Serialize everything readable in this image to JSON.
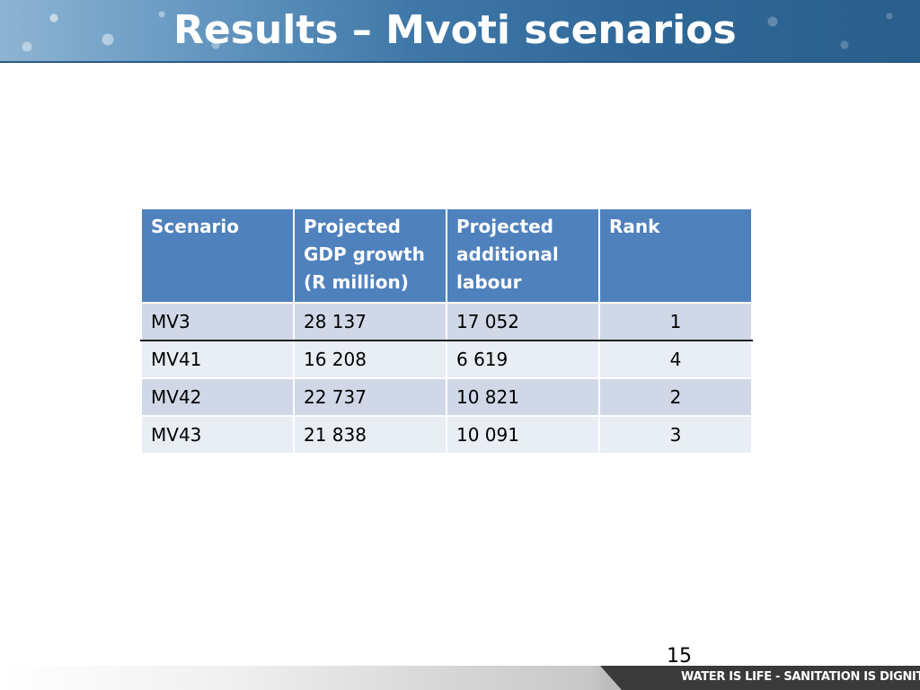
{
  "slide": {
    "title": "Results – Mvoti scenarios",
    "page_number": "15",
    "footer_slogan": "WATER IS LIFE - SANITATION IS DIGNITY"
  },
  "table": {
    "headers": [
      "Scenario",
      "Projected GDP growth (R million)",
      "Projected additional labour",
      "Rank"
    ],
    "rows": [
      [
        "MV3",
        "28 137",
        "17 052",
        "1"
      ],
      [
        "MV41",
        "16 208",
        "6 619",
        "4"
      ],
      [
        "MV42",
        "22 737",
        "10 821",
        "2"
      ],
      [
        "MV43",
        "21 838",
        "10 091",
        "3"
      ]
    ]
  },
  "colors": {
    "header_fill": "#4f81bd",
    "row_fill_odd": "#d0d8e8",
    "row_fill_even": "#e9edf4",
    "banner_blue": "#2f6898"
  }
}
